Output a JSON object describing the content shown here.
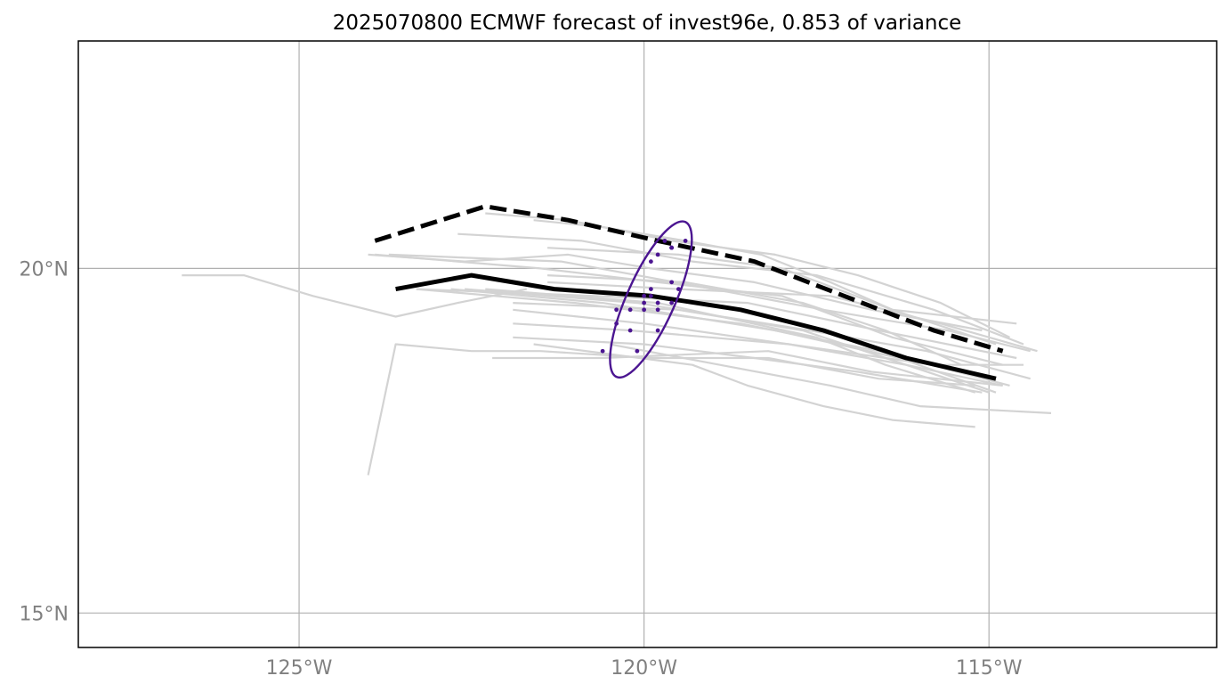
{
  "chart_data": {
    "type": "line",
    "title": "2025070800 ECMWF forecast of invest96e, 0.853 of variance",
    "xlim": [
      -128.2,
      -111.7
    ],
    "ylim": [
      14.5,
      23.3
    ],
    "x_ticks": [
      {
        "value": -125,
        "label": "125°W"
      },
      {
        "value": -120,
        "label": "120°W"
      },
      {
        "value": -115,
        "label": "115°W"
      }
    ],
    "y_ticks": [
      {
        "value": 20,
        "label": "20°N"
      },
      {
        "value": 15,
        "label": "15°N"
      }
    ],
    "grid": true,
    "colors": {
      "ensemble": "#d3d3d3",
      "mean": "#000000",
      "cluster": "#000000",
      "points": "#4b1591",
      "ellipse": "#4b1591",
      "grid": "#b0b0b0",
      "tick_label": "#808080"
    },
    "ensemble_tracks": [
      [
        [
          -126.7,
          19.9
        ],
        [
          -125.8,
          19.9
        ],
        [
          -124.8,
          19.6
        ],
        [
          -123.6,
          19.3
        ],
        [
          -122.7,
          19.5
        ],
        [
          -121.7,
          19.7
        ]
      ],
      [
        [
          -124.0,
          17.0
        ],
        [
          -123.6,
          18.9
        ],
        [
          -122.5,
          18.8
        ],
        [
          -121.5,
          18.8
        ],
        [
          -119.9,
          18.7
        ],
        [
          -118.2,
          18.7
        ],
        [
          -116.6,
          18.4
        ],
        [
          -115.2,
          18.3
        ]
      ],
      [
        [
          -122.2,
          18.7
        ],
        [
          -120.6,
          18.7
        ],
        [
          -118.2,
          18.8
        ],
        [
          -116.7,
          18.5
        ],
        [
          -114.8,
          18.3
        ]
      ],
      [
        [
          -121.9,
          19.2
        ],
        [
          -120.2,
          19.1
        ],
        [
          -117.9,
          18.9
        ],
        [
          -115.8,
          18.6
        ],
        [
          -114.5,
          18.6
        ]
      ],
      [
        [
          -121.9,
          19.4
        ],
        [
          -120.0,
          19.2
        ],
        [
          -117.9,
          18.9
        ],
        [
          -116.2,
          18.6
        ],
        [
          -114.8,
          18.3
        ]
      ],
      [
        [
          -121.9,
          19.5
        ],
        [
          -119.5,
          19.4
        ],
        [
          -117.6,
          19.1
        ],
        [
          -115.9,
          18.8
        ],
        [
          -114.4,
          18.4
        ]
      ],
      [
        [
          -122.3,
          19.7
        ],
        [
          -119.8,
          19.5
        ],
        [
          -117.5,
          19.0
        ],
        [
          -116.5,
          18.6
        ],
        [
          -115.2,
          18.2
        ]
      ],
      [
        [
          -122.6,
          19.7
        ],
        [
          -120.1,
          19.5
        ],
        [
          -117.7,
          19.1
        ],
        [
          -116.2,
          18.6
        ],
        [
          -115.0,
          18.2
        ]
      ],
      [
        [
          -123.3,
          19.7
        ],
        [
          -121.0,
          19.5
        ],
        [
          -118.6,
          19.2
        ],
        [
          -116.6,
          18.8
        ],
        [
          -114.7,
          18.3
        ]
      ],
      [
        [
          -123.3,
          19.7
        ],
        [
          -120.7,
          19.6
        ],
        [
          -118.5,
          19.5
        ],
        [
          -116.6,
          19.1
        ],
        [
          -114.6,
          18.7
        ]
      ],
      [
        [
          -121.4,
          19.8
        ],
        [
          -119.5,
          19.7
        ],
        [
          -117.3,
          19.6
        ],
        [
          -115.7,
          19.2
        ],
        [
          -114.3,
          18.8
        ]
      ],
      [
        [
          -122.8,
          19.7
        ],
        [
          -120.6,
          19.5
        ],
        [
          -118.1,
          19.1
        ],
        [
          -116.3,
          18.7
        ],
        [
          -114.9,
          18.2
        ]
      ],
      [
        [
          -121.9,
          19.0
        ],
        [
          -120.0,
          18.9
        ],
        [
          -118.4,
          18.7
        ],
        [
          -116.9,
          18.5
        ],
        [
          -115.1,
          18.2
        ]
      ],
      [
        [
          -121.4,
          19.9
        ],
        [
          -119.4,
          19.8
        ],
        [
          -117.7,
          19.5
        ],
        [
          -116.5,
          19.1
        ],
        [
          -115.4,
          18.6
        ]
      ],
      [
        [
          -121.6,
          18.9
        ],
        [
          -119.3,
          18.6
        ],
        [
          -118.5,
          18.3
        ],
        [
          -117.4,
          18.0
        ],
        [
          -116.4,
          17.8
        ],
        [
          -115.2,
          17.7
        ]
      ],
      [
        [
          -120.5,
          18.9
        ],
        [
          -118.9,
          18.6
        ],
        [
          -117.3,
          18.3
        ],
        [
          -116.0,
          18.0
        ],
        [
          -114.1,
          17.9
        ]
      ],
      [
        [
          -123.7,
          20.2
        ],
        [
          -121.2,
          20.1
        ],
        [
          -119.0,
          19.7
        ],
        [
          -117.4,
          19.4
        ],
        [
          -115.6,
          19.1
        ],
        [
          -114.4,
          18.8
        ]
      ],
      [
        [
          -123.9,
          20.2
        ],
        [
          -121.5,
          20.0
        ],
        [
          -119.8,
          19.8
        ],
        [
          -118.0,
          19.6
        ],
        [
          -116.4,
          19.0
        ],
        [
          -114.8,
          18.6
        ]
      ],
      [
        [
          -122.7,
          20.5
        ],
        [
          -120.9,
          20.4
        ],
        [
          -119.3,
          20.1
        ],
        [
          -117.5,
          19.9
        ],
        [
          -115.8,
          19.4
        ],
        [
          -114.5,
          18.9
        ]
      ],
      [
        [
          -121.4,
          20.3
        ],
        [
          -119.5,
          20.2
        ],
        [
          -118.0,
          20.0
        ],
        [
          -116.4,
          19.4
        ],
        [
          -114.9,
          18.9
        ]
      ],
      [
        [
          -124.0,
          20.2
        ],
        [
          -122.6,
          20.1
        ],
        [
          -121.1,
          20.2
        ],
        [
          -119.9,
          20.0
        ],
        [
          -118.4,
          19.8
        ],
        [
          -116.7,
          19.4
        ],
        [
          -115.1,
          19.1
        ]
      ],
      [
        [
          -122.3,
          20.8
        ],
        [
          -121.1,
          20.7
        ],
        [
          -119.6,
          20.4
        ],
        [
          -118.1,
          20.2
        ],
        [
          -116.9,
          19.9
        ],
        [
          -115.7,
          19.5
        ],
        [
          -114.7,
          19.0
        ]
      ],
      [
        [
          -121.6,
          20.7
        ],
        [
          -120.6,
          20.6
        ],
        [
          -119.4,
          20.4
        ],
        [
          -118.3,
          20.2
        ],
        [
          -117.3,
          19.8
        ],
        [
          -116.4,
          19.4
        ],
        [
          -114.6,
          19.2
        ]
      ]
    ],
    "mean_track": [
      [
        -123.6,
        19.7
      ],
      [
        -122.5,
        19.9
      ],
      [
        -121.3,
        19.7
      ],
      [
        -119.9,
        19.6
      ],
      [
        -118.6,
        19.4
      ],
      [
        -117.4,
        19.1
      ],
      [
        -116.2,
        18.7
      ],
      [
        -114.9,
        18.4
      ]
    ],
    "cluster_track": [
      [
        -123.9,
        20.4
      ],
      [
        -122.3,
        20.9
      ],
      [
        -121.1,
        20.7
      ],
      [
        -119.8,
        20.4
      ],
      [
        -118.4,
        20.1
      ],
      [
        -117.1,
        19.6
      ],
      [
        -115.8,
        19.1
      ],
      [
        -114.8,
        18.8
      ]
    ],
    "scatter_points": [
      [
        -119.6,
        20.3
      ],
      [
        -119.4,
        20.4
      ],
      [
        -119.7,
        20.4
      ],
      [
        -119.8,
        20.2
      ],
      [
        -119.9,
        20.1
      ],
      [
        -119.6,
        19.8
      ],
      [
        -119.9,
        19.7
      ],
      [
        -119.5,
        19.7
      ],
      [
        -120.0,
        19.6
      ],
      [
        -119.9,
        19.6
      ],
      [
        -120.0,
        19.5
      ],
      [
        -119.8,
        19.5
      ],
      [
        -119.6,
        19.5
      ],
      [
        -120.0,
        19.4
      ],
      [
        -120.2,
        19.4
      ],
      [
        -119.8,
        19.4
      ],
      [
        -120.4,
        19.4
      ],
      [
        -120.4,
        19.2
      ],
      [
        -120.2,
        19.1
      ],
      [
        -119.8,
        19.1
      ],
      [
        -120.1,
        18.8
      ],
      [
        -120.6,
        18.8
      ],
      [
        -119.6,
        20.3
      ],
      [
        -119.6,
        20.3
      ]
    ],
    "ellipse": {
      "center": [
        -119.9,
        19.55
      ],
      "semi_major_lat": 1.23,
      "semi_minor_lat": 0.35,
      "tilt_deg_from_north": 24
    }
  }
}
